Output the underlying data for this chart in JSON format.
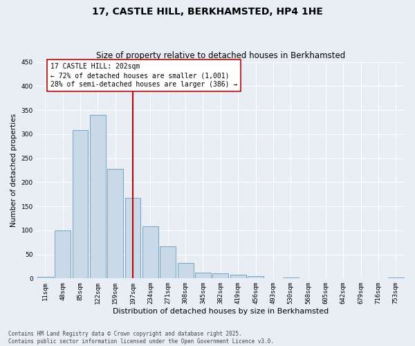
{
  "title": "17, CASTLE HILL, BERKHAMSTED, HP4 1HE",
  "subtitle": "Size of property relative to detached houses in Berkhamsted",
  "xlabel": "Distribution of detached houses by size in Berkhamsted",
  "ylabel": "Number of detached properties",
  "bins": [
    "11sqm",
    "48sqm",
    "85sqm",
    "122sqm",
    "159sqm",
    "197sqm",
    "234sqm",
    "271sqm",
    "308sqm",
    "345sqm",
    "382sqm",
    "419sqm",
    "456sqm",
    "493sqm",
    "530sqm",
    "568sqm",
    "605sqm",
    "642sqm",
    "679sqm",
    "716sqm",
    "753sqm"
  ],
  "values": [
    3,
    100,
    308,
    340,
    228,
    167,
    108,
    67,
    32,
    12,
    10,
    7,
    5,
    0,
    2,
    0,
    0,
    0,
    0,
    0,
    2
  ],
  "bar_color": "#c9d9e8",
  "bar_edge_color": "#6699bb",
  "vline_x_index": 5,
  "vline_color": "#cc0000",
  "annotation_title": "17 CASTLE HILL: 202sqm",
  "annotation_line1": "← 72% of detached houses are smaller (1,001)",
  "annotation_line2": "28% of semi-detached houses are larger (386) →",
  "annotation_box_color": "#ffffff",
  "annotation_box_edge": "#cc0000",
  "ylim": [
    0,
    450
  ],
  "yticks": [
    0,
    50,
    100,
    150,
    200,
    250,
    300,
    350,
    400,
    450
  ],
  "footer_line1": "Contains HM Land Registry data © Crown copyright and database right 2025.",
  "footer_line2": "Contains public sector information licensed under the Open Government Licence v3.0.",
  "background_color": "#e8eef4",
  "grid_color": "#ffffff",
  "title_fontsize": 10,
  "subtitle_fontsize": 8.5,
  "ylabel_fontsize": 7.5,
  "xlabel_fontsize": 8,
  "tick_fontsize": 6.5,
  "annotation_fontsize": 7,
  "footer_fontsize": 5.5
}
